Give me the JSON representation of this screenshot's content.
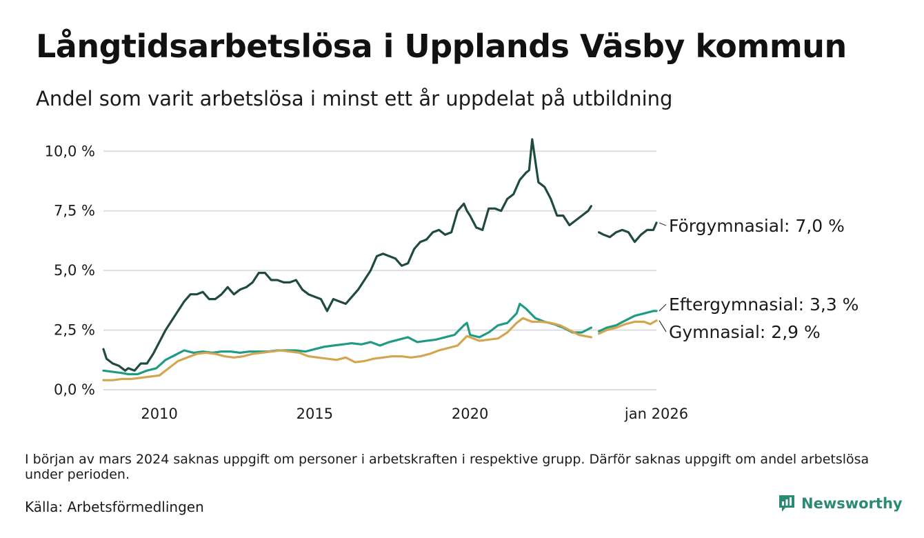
{
  "title": "Långtidsarbetslösa i Upplands Väsby kommun",
  "subtitle": "Andel som varit arbetslösa i minst ett år uppdelat på utbildning",
  "footnote": "I början av mars 2024 saknas uppgift om personer i arbetskraften i respektive grupp. Därför saknas uppgift om andel arbetslösa under perioden.",
  "source": "Källa: Arbetsförmedlingen",
  "brand": "Newsworthy",
  "colors": {
    "forgymnasial": "#1f4a3f",
    "eftergymnasial": "#1f9a85",
    "gymnasial": "#d4a54f",
    "grid": "#dddddd",
    "brand": "#2a8a74"
  },
  "chart_data": {
    "type": "line",
    "title": "Långtidsarbetslösa i Upplands Väsby kommun",
    "xlabel": "",
    "ylabel": "",
    "xlim": [
      2008.2,
      2026.0
    ],
    "ylim": [
      0,
      10.5
    ],
    "y_ticks": [
      0,
      2.5,
      5,
      7.5,
      10
    ],
    "y_tick_labels": [
      "0,0 %",
      "2,5 %",
      "5,0 %",
      "7,5 %",
      "10,0 %"
    ],
    "x_ticks": [
      2010,
      2015,
      2020,
      2026.0
    ],
    "x_tick_labels": [
      "2010",
      "2015",
      "2020",
      "jan 2026"
    ],
    "gap": [
      2023.9,
      2024.15
    ],
    "series": [
      {
        "name": "Förgymnasial",
        "key": "forgymnasial",
        "end_label": "Förgymnasial: 7,0 %",
        "x": [
          2008.2,
          2008.3,
          2008.5,
          2008.7,
          2008.9,
          2009.0,
          2009.2,
          2009.4,
          2009.6,
          2009.8,
          2010.0,
          2010.2,
          2010.4,
          2010.6,
          2010.8,
          2011.0,
          2011.2,
          2011.4,
          2011.6,
          2011.8,
          2012.0,
          2012.2,
          2012.4,
          2012.6,
          2012.8,
          2013.0,
          2013.2,
          2013.4,
          2013.6,
          2013.8,
          2014.0,
          2014.2,
          2014.4,
          2014.6,
          2014.8,
          2015.0,
          2015.2,
          2015.4,
          2015.6,
          2015.8,
          2016.0,
          2016.2,
          2016.4,
          2016.6,
          2016.8,
          2017.0,
          2017.2,
          2017.4,
          2017.6,
          2017.8,
          2018.0,
          2018.2,
          2018.4,
          2018.6,
          2018.8,
          2019.0,
          2019.2,
          2019.4,
          2019.6,
          2019.8,
          2019.9,
          2020.0,
          2020.2,
          2020.4,
          2020.6,
          2020.8,
          2021.0,
          2021.2,
          2021.4,
          2021.6,
          2021.8,
          2021.9,
          2022.0,
          2022.2,
          2022.4,
          2022.6,
          2022.8,
          2023.0,
          2023.2,
          2023.4,
          2023.6,
          2023.8,
          2023.9,
          null,
          2024.15,
          2024.3,
          2024.5,
          2024.7,
          2024.9,
          2025.1,
          2025.3,
          2025.5,
          2025.7,
          2025.9,
          2026.0
        ],
        "values": [
          1.7,
          1.3,
          1.1,
          1.0,
          0.8,
          0.9,
          0.8,
          1.1,
          1.1,
          1.5,
          2.0,
          2.5,
          2.9,
          3.3,
          3.7,
          4.0,
          4.0,
          4.1,
          3.8,
          3.8,
          4.0,
          4.3,
          4.0,
          4.2,
          4.3,
          4.5,
          4.9,
          4.9,
          4.6,
          4.6,
          4.5,
          4.5,
          4.6,
          4.2,
          4.0,
          3.9,
          3.8,
          3.3,
          3.8,
          3.7,
          3.6,
          3.9,
          4.2,
          4.6,
          5.0,
          5.6,
          5.7,
          5.6,
          5.5,
          5.2,
          5.3,
          5.9,
          6.2,
          6.3,
          6.6,
          6.7,
          6.5,
          6.6,
          7.5,
          7.8,
          7.5,
          7.3,
          6.8,
          6.7,
          7.6,
          7.6,
          7.5,
          8.0,
          8.2,
          8.8,
          9.1,
          9.2,
          10.5,
          8.7,
          8.5,
          8.0,
          7.3,
          7.3,
          6.9,
          7.1,
          7.3,
          7.5,
          7.7,
          null,
          6.6,
          6.5,
          6.4,
          6.6,
          6.7,
          6.6,
          6.2,
          6.5,
          6.7,
          6.7,
          7.0
        ]
      },
      {
        "name": "Eftergymnasial",
        "key": "eftergymnasial",
        "end_label": "Eftergymnasial: 3,3 %",
        "x": [
          2008.2,
          2008.5,
          2008.8,
          2009.0,
          2009.3,
          2009.6,
          2009.9,
          2010.2,
          2010.5,
          2010.8,
          2011.1,
          2011.4,
          2011.7,
          2012.0,
          2012.3,
          2012.6,
          2012.9,
          2013.2,
          2013.5,
          2013.8,
          2014.1,
          2014.4,
          2014.7,
          2015.0,
          2015.3,
          2015.6,
          2015.9,
          2016.2,
          2016.5,
          2016.8,
          2017.1,
          2017.4,
          2017.7,
          2018.0,
          2018.3,
          2018.6,
          2018.9,
          2019.2,
          2019.5,
          2019.8,
          2019.9,
          2020.0,
          2020.3,
          2020.6,
          2020.9,
          2021.2,
          2021.5,
          2021.6,
          2021.8,
          2022.1,
          2022.4,
          2022.7,
          2023.0,
          2023.3,
          2023.6,
          2023.9,
          null,
          2024.15,
          2024.4,
          2024.7,
          2025.0,
          2025.3,
          2025.6,
          2025.9,
          2026.0
        ],
        "values": [
          0.8,
          0.75,
          0.7,
          0.65,
          0.65,
          0.8,
          0.9,
          1.25,
          1.45,
          1.65,
          1.55,
          1.6,
          1.55,
          1.6,
          1.6,
          1.55,
          1.6,
          1.6,
          1.6,
          1.65,
          1.65,
          1.65,
          1.6,
          1.7,
          1.8,
          1.85,
          1.9,
          1.95,
          1.9,
          2.0,
          1.85,
          2.0,
          2.1,
          2.2,
          2.0,
          2.05,
          2.1,
          2.2,
          2.3,
          2.7,
          2.8,
          2.3,
          2.2,
          2.4,
          2.7,
          2.8,
          3.2,
          3.6,
          3.4,
          3.0,
          2.85,
          2.75,
          2.6,
          2.4,
          2.4,
          2.6,
          null,
          2.45,
          2.6,
          2.7,
          2.9,
          3.1,
          3.2,
          3.3,
          3.3
        ]
      },
      {
        "name": "Gymnasial",
        "key": "gymnasial",
        "end_label": "Gymnasial: 2,9 %",
        "x": [
          2008.2,
          2008.5,
          2008.8,
          2009.1,
          2009.4,
          2009.7,
          2010.0,
          2010.3,
          2010.6,
          2010.9,
          2011.2,
          2011.5,
          2011.8,
          2012.1,
          2012.4,
          2012.7,
          2013.0,
          2013.3,
          2013.6,
          2013.9,
          2014.2,
          2014.5,
          2014.8,
          2015.1,
          2015.4,
          2015.7,
          2016.0,
          2016.3,
          2016.6,
          2016.9,
          2017.2,
          2017.5,
          2017.8,
          2018.1,
          2018.4,
          2018.7,
          2019.0,
          2019.3,
          2019.6,
          2019.9,
          2020.0,
          2020.3,
          2020.6,
          2020.9,
          2021.2,
          2021.5,
          2021.7,
          2022.0,
          2022.3,
          2022.6,
          2022.9,
          2023.2,
          2023.5,
          2023.9,
          null,
          2024.15,
          2024.4,
          2024.7,
          2025.0,
          2025.3,
          2025.6,
          2025.8,
          2026.0
        ],
        "values": [
          0.4,
          0.4,
          0.45,
          0.45,
          0.5,
          0.55,
          0.6,
          0.9,
          1.2,
          1.35,
          1.5,
          1.55,
          1.5,
          1.4,
          1.35,
          1.4,
          1.5,
          1.55,
          1.6,
          1.65,
          1.6,
          1.55,
          1.4,
          1.35,
          1.3,
          1.25,
          1.35,
          1.15,
          1.2,
          1.3,
          1.35,
          1.4,
          1.4,
          1.35,
          1.4,
          1.5,
          1.65,
          1.75,
          1.85,
          2.25,
          2.2,
          2.05,
          2.1,
          2.15,
          2.4,
          2.8,
          3.0,
          2.85,
          2.85,
          2.8,
          2.7,
          2.5,
          2.3,
          2.2,
          null,
          2.35,
          2.5,
          2.6,
          2.75,
          2.85,
          2.85,
          2.75,
          2.9
        ]
      }
    ]
  }
}
